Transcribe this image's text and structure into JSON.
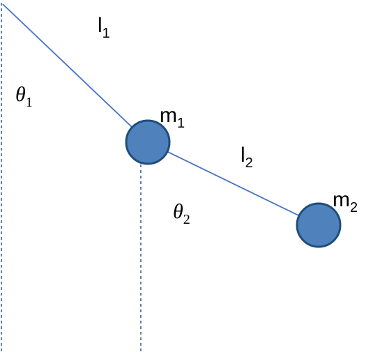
{
  "diagram": {
    "labels": {
      "l1": {
        "base": "l",
        "sub": "1"
      },
      "l2": {
        "base": "l",
        "sub": "2"
      },
      "theta1": {
        "base": "θ",
        "sub": "1"
      },
      "theta2": {
        "base": "θ",
        "sub": "2"
      },
      "m1": {
        "base": "m",
        "sub": "1"
      },
      "m2": {
        "base": "m",
        "sub": "2"
      }
    },
    "colors": {
      "rod": "#4472C4",
      "mass_fill": "#4F81BD",
      "mass_stroke": "#1F4E79",
      "reference_line": "#2F5597"
    }
  }
}
